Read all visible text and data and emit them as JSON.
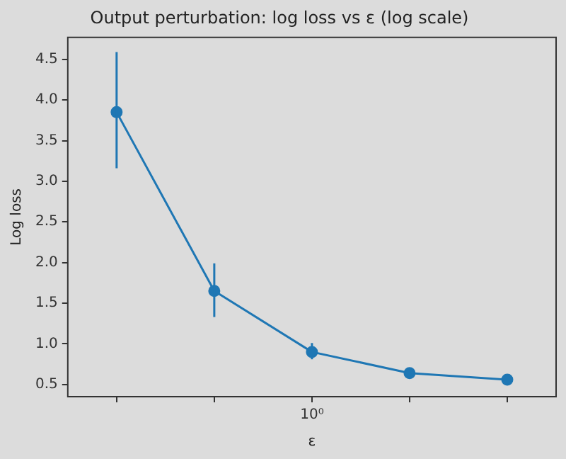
{
  "chart_data": {
    "type": "line",
    "title": "Output perturbation: log loss vs ε (log scale)",
    "xlabel": "ε",
    "ylabel": "Log loss",
    "categories": [
      null,
      null,
      "10⁰",
      null,
      null
    ],
    "series": [
      {
        "color": "#1f77b4",
        "values": [
          3.85,
          1.65,
          0.9,
          0.64,
          0.56
        ],
        "errors": [
          [
            3.16,
            4.59
          ],
          [
            1.33,
            1.99
          ],
          [
            0.81,
            1.01
          ],
          null,
          null
        ]
      }
    ],
    "ylim": [
      0.35,
      4.77
    ],
    "yticks": [
      {
        "value": 0.5,
        "label": "0.5"
      },
      {
        "value": 1,
        "label": "1.0"
      },
      {
        "value": 1.5,
        "label": "1.5"
      },
      {
        "value": 2,
        "label": "2.0"
      },
      {
        "value": 2.5,
        "label": "2.5"
      },
      {
        "value": 3,
        "label": "3.0"
      },
      {
        "value": 3.5,
        "label": "3.5"
      },
      {
        "value": 4,
        "label": "4.0"
      },
      {
        "value": 4.5,
        "label": "4.5"
      }
    ],
    "grid": false,
    "legend": false,
    "marker": "circle",
    "line_style": "solid"
  }
}
